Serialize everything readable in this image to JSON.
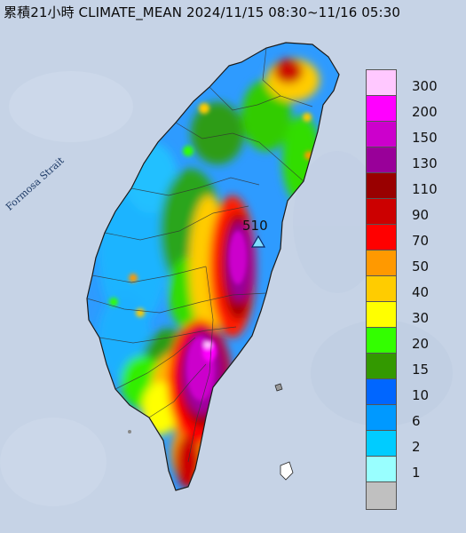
{
  "title": "累積21小時 CLIMATE_MEAN 2024/11/15 08:30~11/16 05:30",
  "strait_label": "Formosa Strait",
  "station": {
    "value": "510",
    "marker": "triangle-marker-icon"
  },
  "legend": {
    "unit": "",
    "classes": [
      {
        "label": "300",
        "color": "#ffc8ff"
      },
      {
        "label": "200",
        "color": "#ff00ff"
      },
      {
        "label": "150",
        "color": "#cc00cc"
      },
      {
        "label": "130",
        "color": "#990099"
      },
      {
        "label": "110",
        "color": "#990000"
      },
      {
        "label": "90",
        "color": "#cc0000"
      },
      {
        "label": "70",
        "color": "#ff0000"
      },
      {
        "label": "50",
        "color": "#ff9900"
      },
      {
        "label": "40",
        "color": "#ffcc00"
      },
      {
        "label": "30",
        "color": "#ffff00"
      },
      {
        "label": "20",
        "color": "#33ff00"
      },
      {
        "label": "15",
        "color": "#339900"
      },
      {
        "label": "10",
        "color": "#0066ff"
      },
      {
        "label": "6",
        "color": "#0099ff"
      },
      {
        "label": "2",
        "color": "#00ccff"
      },
      {
        "label": "1",
        "color": "#99ffff"
      },
      {
        "label": "",
        "color": "#c0c0c0"
      }
    ]
  },
  "colors": {
    "sea": "#c4d2e6",
    "land_base": "#2e9bff"
  }
}
